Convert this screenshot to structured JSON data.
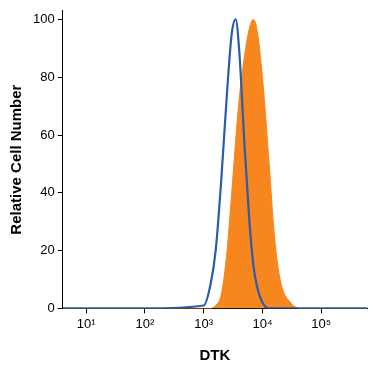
{
  "chart_data": {
    "type": "line",
    "x_label": "DTK",
    "y_label": "Relative Cell Number",
    "log": "x",
    "grid": false,
    "xlim": [
      4,
      600000
    ],
    "xticks": [
      {
        "value": 10,
        "label": "10¹"
      },
      {
        "value": 100,
        "label": "10²"
      },
      {
        "value": 1000,
        "label": "10³"
      },
      {
        "value": 10000,
        "label": "10⁴"
      },
      {
        "value": 100000,
        "label": "10⁵"
      }
    ],
    "ylim": [
      0,
      103
    ],
    "yticks": [
      0,
      20,
      40,
      60,
      80,
      100
    ],
    "x": [
      4,
      100,
      1000,
      1300,
      1600,
      2000,
      2500,
      3000,
      3500,
      4000,
      5000,
      6000,
      7000,
      8000,
      10000,
      13000,
      16000,
      20000,
      30000,
      50000,
      600000
    ],
    "series": [
      {
        "type": "area",
        "color": "#f7861f",
        "values": [
          0,
          0,
          0,
          0,
          1,
          5,
          20,
          40,
          58,
          72,
          88,
          97,
          100,
          97,
          80,
          50,
          25,
          10,
          2,
          0,
          0
        ]
      },
      {
        "type": "line",
        "color": "#2a5caa",
        "values": [
          0,
          0,
          1,
          8,
          20,
          45,
          75,
          95,
          100,
          90,
          55,
          30,
          15,
          8,
          2,
          0,
          0,
          0,
          0,
          0,
          0
        ]
      }
    ]
  }
}
